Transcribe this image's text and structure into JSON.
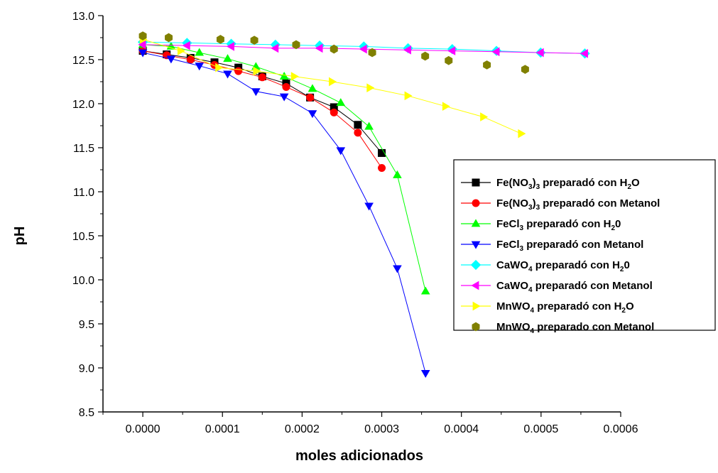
{
  "chart_data": {
    "type": "scatter",
    "xlabel": "moles adicionados",
    "ylabel": "pH",
    "xlim": [
      -5e-05,
      0.0006
    ],
    "ylim": [
      8.5,
      13.0
    ],
    "x_ticks": [
      0.0,
      0.0001,
      0.0002,
      0.0003,
      0.0004,
      0.0005,
      0.0006
    ],
    "x_tick_labels": [
      "0.0000",
      "0.0001",
      "0.0002",
      "0.0003",
      "0.0004",
      "0.0005",
      "0.0006"
    ],
    "y_ticks": [
      8.5,
      9.0,
      9.5,
      10.0,
      10.5,
      11.0,
      11.5,
      12.0,
      12.5,
      13.0
    ],
    "y_tick_labels": [
      "8.5",
      "9.0",
      "9.5",
      "10.0",
      "10.5",
      "11.0",
      "11.5",
      "12.0",
      "12.5",
      "13.0"
    ],
    "grid": false,
    "legend_position": "right",
    "series": [
      {
        "name_parts": [
          "Fe(NO",
          "3",
          ")",
          "3",
          " preparadó con H",
          "2",
          "O"
        ],
        "name_sub": [
          false,
          true,
          false,
          true,
          false,
          true,
          false
        ],
        "marker": "square",
        "color": "#000000",
        "line_color": "#000000",
        "x": [
          0.0,
          3e-05,
          6e-05,
          9e-05,
          0.00012,
          0.00015,
          0.00018,
          0.00021,
          0.00024,
          0.00027,
          0.0003
        ],
        "y": [
          12.6,
          12.56,
          12.52,
          12.47,
          12.41,
          12.31,
          12.23,
          12.07,
          11.96,
          11.76,
          11.44
        ]
      },
      {
        "name_parts": [
          "Fe(NO",
          "3",
          ")",
          "3",
          " preparadó con Metanol"
        ],
        "name_sub": [
          false,
          true,
          false,
          true,
          false
        ],
        "marker": "circle",
        "color": "#ff0000",
        "line_color": "#ff0000",
        "x": [
          0.0,
          3e-05,
          6e-05,
          9e-05,
          0.00012,
          0.00015,
          0.00018,
          0.00021,
          0.00024,
          0.00027,
          0.0003
        ],
        "y": [
          12.6,
          12.55,
          12.5,
          12.44,
          12.37,
          12.3,
          12.19,
          12.07,
          11.9,
          11.67,
          11.27
        ]
      },
      {
        "name_parts": [
          "FeCl",
          "3",
          " preparadó con H",
          "2",
          "0"
        ],
        "name_sub": [
          false,
          true,
          false,
          true,
          false
        ],
        "marker": "triangle-up",
        "color": "#00ff00",
        "line_color": "#00ff00",
        "x": [
          0.0,
          3.55e-05,
          7.1e-05,
          0.0001065,
          0.000142,
          0.0001775,
          0.000213,
          0.0002485,
          0.000284,
          0.0003195,
          0.000355
        ],
        "y": [
          12.67,
          12.65,
          12.58,
          12.51,
          12.42,
          12.31,
          12.17,
          12.01,
          11.74,
          11.19,
          9.87
        ]
      },
      {
        "name_parts": [
          "FeCl",
          "3",
          " preparadó con Metanol"
        ],
        "name_sub": [
          false,
          true,
          false
        ],
        "marker": "triangle-down",
        "color": "#0000ff",
        "line_color": "#0000ff",
        "x": [
          0.0,
          3.55e-05,
          7.1e-05,
          0.0001065,
          0.000142,
          0.0001775,
          0.000213,
          0.0002485,
          0.000284,
          0.0003195,
          0.000355
        ],
        "y": [
          12.58,
          12.51,
          12.43,
          12.34,
          12.14,
          12.08,
          11.89,
          11.47,
          10.84,
          10.13,
          8.94
        ]
      },
      {
        "name_parts": [
          "CaWO",
          "4",
          " preparadó con H",
          "2",
          "0"
        ],
        "name_sub": [
          false,
          true,
          false,
          true,
          false
        ],
        "marker": "diamond",
        "color": "#00ffff",
        "line_color": "#00ffff",
        "x": [
          0.0,
          5.55e-05,
          0.000111,
          0.0001665,
          0.000222,
          0.0002775,
          0.000333,
          0.0003885,
          0.000444,
          0.0004995,
          0.000555
        ],
        "y": [
          12.7,
          12.69,
          12.68,
          12.67,
          12.66,
          12.65,
          12.63,
          12.62,
          12.6,
          12.58,
          12.57
        ]
      },
      {
        "name_parts": [
          "CaWO",
          "4",
          " preparadó con Metanol"
        ],
        "name_sub": [
          false,
          true,
          false
        ],
        "marker": "triangle-left",
        "color": "#ff00ff",
        "line_color": "#ff00ff",
        "x": [
          0.0,
          5.55e-05,
          0.000111,
          0.0001665,
          0.000222,
          0.0002775,
          0.000333,
          0.0003885,
          0.000444,
          0.0004995,
          0.000555
        ],
        "y": [
          12.67,
          12.66,
          12.65,
          12.63,
          12.63,
          12.62,
          12.61,
          12.6,
          12.59,
          12.58,
          12.57
        ]
      },
      {
        "name_parts": [
          "MnWO",
          "4",
          " preparadó con H",
          "2",
          "O"
        ],
        "name_sub": [
          false,
          true,
          false,
          true,
          false
        ],
        "marker": "triangle-right",
        "color": "#ffff00",
        "line_color": "#ffff00",
        "x": [
          0.0,
          4.75e-05,
          9.5e-05,
          0.0001425,
          0.00019,
          0.0002375,
          0.000285,
          0.0003325,
          0.00038,
          0.0004275,
          0.000475
        ],
        "y": [
          12.73,
          12.6,
          12.41,
          12.37,
          12.31,
          12.25,
          12.18,
          12.09,
          11.97,
          11.85,
          11.66
        ]
      },
      {
        "name_parts": [
          "MnWO",
          "4",
          " preparado con Metanol"
        ],
        "name_sub": [
          false,
          true,
          false
        ],
        "marker": "hexagon",
        "color": "#808000",
        "line_color": null,
        "x": [
          0.0,
          3.25e-05,
          9.75e-05,
          0.00014,
          0.0001925,
          0.00024,
          0.000288,
          0.0003545,
          0.000384,
          0.000432,
          0.00048
        ],
        "y": [
          12.77,
          12.75,
          12.73,
          12.72,
          12.67,
          12.62,
          12.58,
          12.54,
          12.49,
          12.44,
          12.39
        ]
      }
    ]
  }
}
